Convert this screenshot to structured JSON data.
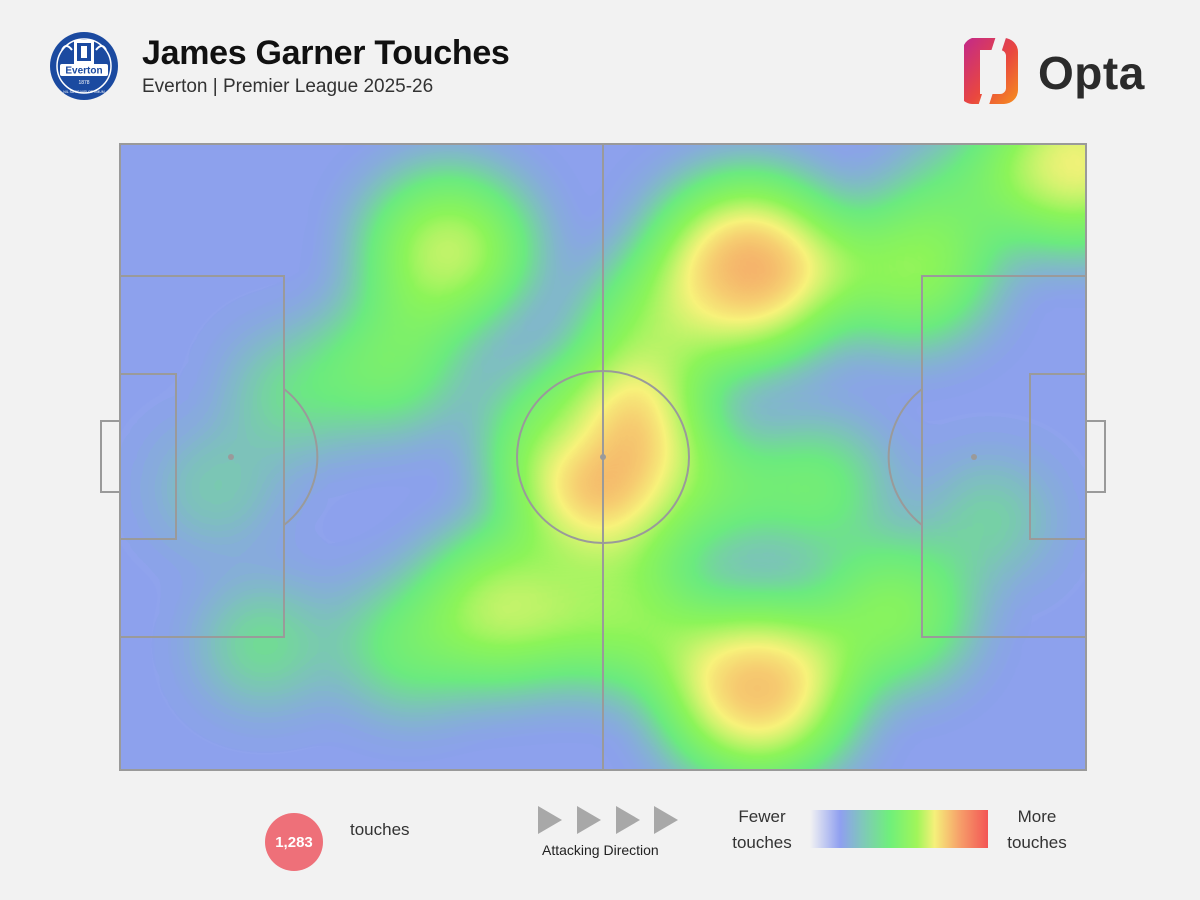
{
  "header": {
    "title": "James Garner Touches",
    "subtitle": "Everton | Premier League 2025-26",
    "club_crest": {
      "icon": "everton-crest-icon",
      "text": "Everton",
      "motto": "NIL SATIS NISI OPTIMUM",
      "year": "1878",
      "color": "#1b4aa0"
    },
    "brand": {
      "icon": "opta-logo-icon",
      "text": "Opta"
    }
  },
  "chart_data": {
    "type": "heatmap",
    "title": "James Garner Touches",
    "subtitle": "Everton | Premier League 2025-26",
    "pitch": {
      "length": 100,
      "width": 100,
      "line_color": "#9a9a9a"
    },
    "attacking_direction": "left-to-right",
    "total_touches": 1283,
    "hotspots": [
      {
        "x": 50,
        "y": 50,
        "intensity": 1.0
      },
      {
        "x": 65,
        "y": 20,
        "intensity": 0.9
      },
      {
        "x": 66,
        "y": 87,
        "intensity": 0.85
      },
      {
        "x": 99,
        "y": 3,
        "intensity": 0.7
      },
      {
        "x": 34,
        "y": 17,
        "intensity": 0.6
      },
      {
        "x": 40,
        "y": 74,
        "intensity": 0.6
      },
      {
        "x": 52,
        "y": 75,
        "intensity": 0.5
      },
      {
        "x": 56,
        "y": 30,
        "intensity": 0.5
      },
      {
        "x": 28,
        "y": 35,
        "intensity": 0.35
      },
      {
        "x": 82,
        "y": 20,
        "intensity": 0.5
      },
      {
        "x": 80,
        "y": 75,
        "intensity": 0.45
      },
      {
        "x": 45,
        "y": 45,
        "intensity": 0.3
      },
      {
        "x": 60,
        "y": 55,
        "intensity": 0.35
      },
      {
        "x": 30,
        "y": 80,
        "intensity": 0.3
      },
      {
        "x": 72,
        "y": 55,
        "intensity": 0.3
      },
      {
        "x": 18,
        "y": 40,
        "intensity": 0.2
      },
      {
        "x": 15,
        "y": 80,
        "intensity": 0.2
      },
      {
        "x": 88,
        "y": 8,
        "intensity": 0.25
      },
      {
        "x": 90,
        "y": 60,
        "intensity": 0.15
      },
      {
        "x": 10,
        "y": 55,
        "intensity": 0.12
      }
    ],
    "legend": {
      "low": "Fewer touches",
      "high": "More touches"
    }
  },
  "footer": {
    "touch_count": "1,283",
    "touch_label": "touches",
    "direction_label": "Attacking Direction",
    "legend_low": [
      "Fewer",
      "touches"
    ],
    "legend_high": [
      "More",
      "touches"
    ]
  }
}
